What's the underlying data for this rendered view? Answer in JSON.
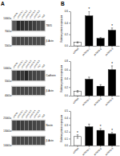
{
  "chart_data": [
    {
      "type": "blot",
      "title": "A",
      "categories": [
        "shRNA",
        "shTBX5-1",
        "shTBX5-2",
        "shTBX5-3",
        "shTBX5-4",
        "shTBX5-5",
        "NC7",
        "NC8"
      ],
      "series": [
        {
          "name": "TBX5",
          "values": [
            0.35,
            0.15,
            0.18,
            0.2,
            0.22,
            0.25,
            0.28,
            0.3
          ]
        },
        {
          "name": "β-Actin",
          "values": [
            0.3,
            0.28,
            0.28,
            0.28,
            0.29,
            0.29,
            0.3,
            0.3
          ]
        }
      ],
      "annotations": [
        "100kDa",
        "70kDa",
        "55kDa"
      ]
    },
    {
      "type": "blot",
      "categories": [
        "shRNA",
        "shTBX5-1",
        "shTBX5-2",
        "shTBX5-3",
        "shTBX5-4",
        "shTBX5-5",
        "NC7",
        "NC8"
      ],
      "series": [
        {
          "name": "Cadherin",
          "values": [
            0.3,
            0.2,
            0.22,
            0.15,
            0.25,
            0.27,
            0.28,
            0.3
          ]
        },
        {
          "name": "β-Actin",
          "values": [
            0.3,
            0.28,
            0.28,
            0.28,
            0.29,
            0.29,
            0.3,
            0.3
          ]
        }
      ],
      "annotations": [
        "100kDa",
        "55kDa",
        "40kDa"
      ]
    },
    {
      "type": "blot",
      "categories": [
        "shRNA",
        "shTBX5-1",
        "shTBX5-2",
        "shTBX5-3",
        "shTBX5-4",
        "shTBX5-5",
        "NC7",
        "NC8"
      ],
      "series": [
        {
          "name": "Nestin",
          "values": [
            0.28,
            0.22,
            0.24,
            0.26,
            0.25,
            0.27,
            0.28,
            0.29
          ]
        },
        {
          "name": "β-Actin",
          "values": [
            0.3,
            0.28,
            0.28,
            0.28,
            0.29,
            0.29,
            0.3,
            0.3
          ]
        }
      ],
      "annotations": [
        "250kDa",
        "130kDa",
        "100kDa"
      ]
    },
    {
      "type": "bar",
      "title": "B",
      "ylabel": "Relative protein expression",
      "categories": [
        "shRNA",
        "shTBX5-1",
        "shTBX5-2",
        "shTBX5-3"
      ],
      "values": [
        0.06,
        0.52,
        0.13,
        0.27
      ],
      "errors": [
        0.01,
        0.08,
        0.015,
        0.04
      ],
      "colors": [
        "white",
        "black",
        "black",
        "black"
      ],
      "annotations": [
        null,
        "*",
        null,
        "*"
      ],
      "ylim": [
        0,
        0.6
      ],
      "yticks": [
        {
          "value": 0,
          "label": "0.0"
        },
        0.2,
        0.4,
        0.6
      ]
    },
    {
      "type": "bar",
      "ylabel": "Relative protein expression",
      "categories": [
        "shRNA",
        "shTBX5-1",
        "shTBX5-2",
        "shTBX5-3"
      ],
      "values": [
        0.1,
        0.38,
        0.22,
        0.6
      ],
      "errors": [
        0.02,
        0.05,
        0.035,
        0.09
      ],
      "colors": [
        "white",
        "black",
        "black",
        "black"
      ],
      "annotations": [
        null,
        null,
        null,
        "*"
      ],
      "ylim": [
        0,
        0.8
      ],
      "yticks": [
        {
          "value": 0,
          "label": "0.0"
        },
        0.2,
        0.4,
        0.6,
        0.8
      ]
    },
    {
      "type": "bar",
      "ylabel": "Relative protein expression",
      "categories": [
        "shRNA",
        "shTBX5-1",
        "shTBX5-2",
        "shTBX5-3"
      ],
      "values": [
        0.13,
        0.27,
        0.22,
        0.17
      ],
      "errors": [
        0.025,
        0.04,
        0.025,
        0.02
      ],
      "colors": [
        "white",
        "black",
        "black",
        "black"
      ],
      "annotations": [
        "*",
        null,
        "*",
        "*"
      ],
      "ylim": [
        0,
        0.5
      ],
      "yticks": [
        {
          "value": 0,
          "label": "0.0"
        },
        0.1,
        0.2,
        0.3,
        0.4,
        0.5
      ]
    }
  ]
}
